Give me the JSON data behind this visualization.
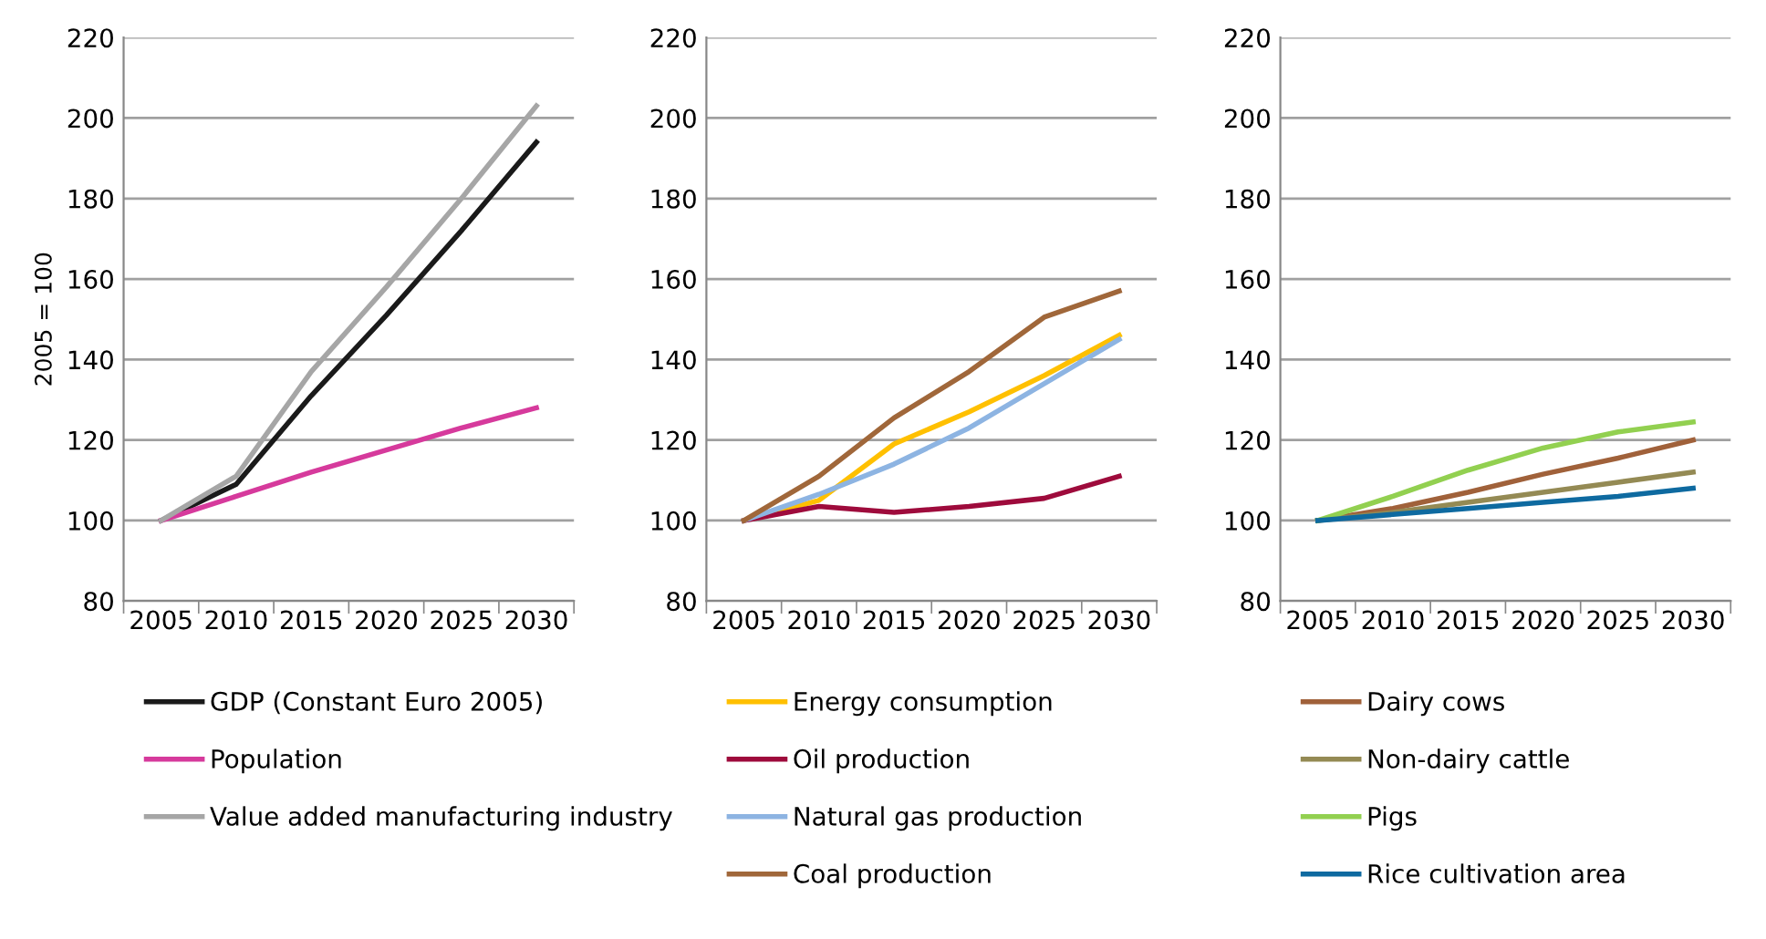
{
  "chart_data": [
    {
      "type": "line",
      "ylabel": "2005 = 100",
      "categories": [
        "2005",
        "2010",
        "2015",
        "2020",
        "2025",
        "2030"
      ],
      "ylim": [
        80,
        220
      ],
      "yticks": [
        80,
        100,
        120,
        140,
        160,
        180,
        200,
        220
      ],
      "grid": "y",
      "legend": "bottom",
      "series": [
        {
          "name": "GDP (Constant Euro 2005)",
          "color": "#1a1a1a",
          "values": [
            100,
            109,
            131,
            151,
            172,
            194
          ]
        },
        {
          "name": "Population",
          "color": "#d63a9c",
          "values": [
            100,
            106,
            112,
            117.5,
            123,
            128
          ]
        },
        {
          "name": "Value added manufacturing industry",
          "color": "#a6a6a6",
          "values": [
            100,
            111,
            137,
            158,
            180,
            203
          ]
        }
      ]
    },
    {
      "type": "line",
      "categories": [
        "2005",
        "2010",
        "2015",
        "2020",
        "2025",
        "2030"
      ],
      "ylim": [
        80,
        220
      ],
      "yticks": [
        80,
        100,
        120,
        140,
        160,
        180,
        200,
        220
      ],
      "grid": "y",
      "legend": "bottom",
      "series": [
        {
          "name": "Energy consumption",
          "color": "#ffc000",
          "values": [
            100,
            105,
            119,
            127,
            136,
            146
          ]
        },
        {
          "name": "Oil production",
          "color": "#9e0b3c",
          "values": [
            100,
            103.5,
            102,
            103.5,
            105.5,
            111
          ]
        },
        {
          "name": "Natural gas production",
          "color": "#8db4e2",
          "values": [
            100,
            106.5,
            114,
            123,
            134,
            145
          ]
        },
        {
          "name": "Coal production",
          "color": "#a0673a",
          "values": [
            100,
            111,
            125.5,
            137,
            150.5,
            157
          ]
        }
      ]
    },
    {
      "type": "line",
      "categories": [
        "2005",
        "2010",
        "2015",
        "2020",
        "2025",
        "2030"
      ],
      "ylim": [
        80,
        220
      ],
      "yticks": [
        80,
        100,
        120,
        140,
        160,
        180,
        200,
        220
      ],
      "grid": "y",
      "legend": "bottom",
      "series": [
        {
          "name": "Dairy cows",
          "color": "#a0613a",
          "values": [
            100,
            103,
            107,
            111.5,
            115.5,
            120
          ]
        },
        {
          "name": "Non-dairy cattle",
          "color": "#948a54",
          "values": [
            100,
            102,
            104.5,
            107,
            109.5,
            112
          ]
        },
        {
          "name": "Pigs",
          "color": "#92d050",
          "values": [
            100,
            106,
            112.5,
            118,
            122,
            124.5
          ]
        },
        {
          "name": "Rice cultivation area",
          "color": "#0e6aa0",
          "values": [
            100,
            101.5,
            103,
            104.5,
            106,
            108
          ]
        }
      ]
    }
  ]
}
